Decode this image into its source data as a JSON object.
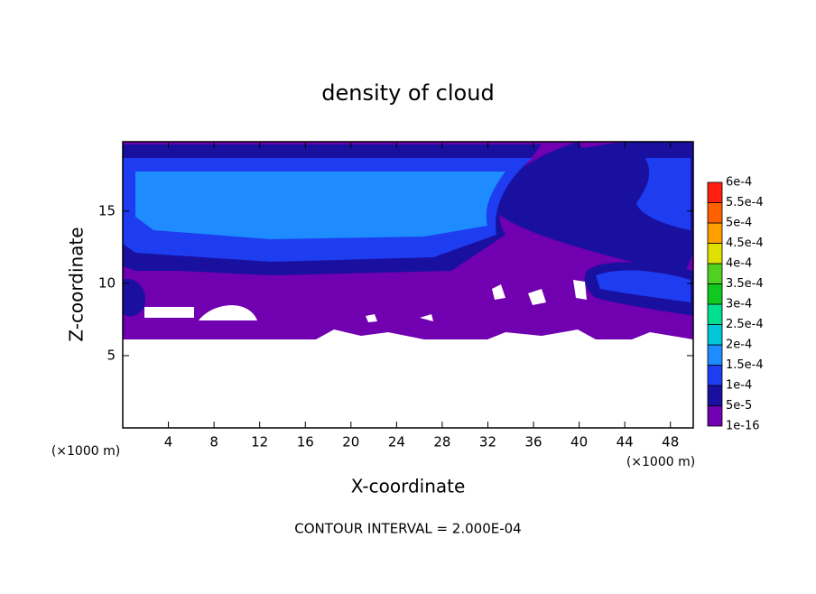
{
  "chart_data": {
    "type": "contour",
    "title": "density of cloud",
    "x_label": "X-coordinate",
    "y_label": "Z-coordinate",
    "x_unit": "(×1000 m)",
    "y_unit": "(×1000 m)",
    "annotation": "CONTOUR INTERVAL = 2.000E-04",
    "xlim": [
      0,
      50
    ],
    "ylim": [
      0,
      19.8
    ],
    "xticks": [
      4,
      8,
      12,
      16,
      20,
      24,
      28,
      32,
      36,
      40,
      44,
      48
    ],
    "yticks": [
      5,
      10,
      15
    ],
    "levels": [
      {
        "value": 1e-16,
        "label": "1e-16"
      },
      {
        "value": 5e-05,
        "label": "5e-5"
      },
      {
        "value": 0.0001,
        "label": "1e-4"
      },
      {
        "value": 0.00015,
        "label": "1.5e-4"
      },
      {
        "value": 0.0002,
        "label": "2e-4"
      },
      {
        "value": 0.00025,
        "label": "2.5e-4"
      },
      {
        "value": 0.0003,
        "label": "3e-4"
      },
      {
        "value": 0.00035,
        "label": "3.5e-4"
      },
      {
        "value": 0.0004,
        "label": "4e-4"
      },
      {
        "value": 0.00045,
        "label": "4.5e-4"
      },
      {
        "value": 0.0005,
        "label": "5e-4"
      },
      {
        "value": 0.00055,
        "label": "5.5e-4"
      },
      {
        "value": 0.0006,
        "label": "6e-4"
      }
    ],
    "colors": [
      "#7000b0",
      "#1a10a0",
      "#1e3cf0",
      "#1e8cff",
      "#00c8d8",
      "#00e090",
      "#10c820",
      "#50d020",
      "#e0e000",
      "#ffa000",
      "#ff6000",
      "#ff2010",
      "#ff8080"
    ]
  }
}
